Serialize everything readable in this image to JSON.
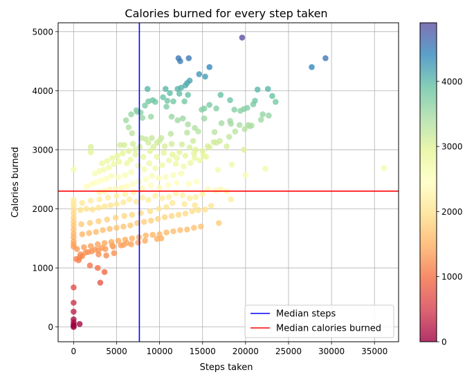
{
  "chart_data": {
    "type": "scatter",
    "title": "Calories burned for every step taken",
    "xlabel": "Steps taken",
    "ylabel": "Calories burned",
    "xlim": [
      -1800,
      37800
    ],
    "ylim": [
      -250,
      5150
    ],
    "xticks": [
      0,
      5000,
      10000,
      15000,
      20000,
      25000,
      30000,
      35000
    ],
    "yticks": [
      0,
      1000,
      2000,
      3000,
      4000,
      5000
    ],
    "grid": true,
    "colormap": "Spectral",
    "colorbar": {
      "min": 0,
      "max": 4900,
      "ticks": [
        0,
        1000,
        2000,
        3000,
        4000
      ]
    },
    "reference_lines": [
      {
        "orientation": "vertical",
        "value": 7650,
        "color": "#0000ff",
        "label": "Median steps"
      },
      {
        "orientation": "horizontal",
        "value": 2300,
        "color": "#ff0000",
        "label": "Median calories burned"
      }
    ],
    "legend": {
      "placement": "lower right",
      "entries": [
        "Median steps",
        "Median calories burned"
      ]
    },
    "points": [
      [
        19600,
        4900
      ],
      [
        29300,
        4550
      ],
      [
        27700,
        4400
      ],
      [
        12200,
        4550
      ],
      [
        12400,
        4500
      ],
      [
        13400,
        4550
      ],
      [
        15800,
        4400
      ],
      [
        14600,
        4280
      ],
      [
        15300,
        4240
      ],
      [
        13200,
        4130
      ],
      [
        13500,
        4170
      ],
      [
        13000,
        4090
      ],
      [
        12100,
        4030
      ],
      [
        12500,
        4050
      ],
      [
        8600,
        4030
      ],
      [
        10700,
        4030
      ],
      [
        11200,
        3960
      ],
      [
        12300,
        3950
      ],
      [
        13300,
        3930
      ],
      [
        17100,
        3930
      ],
      [
        18200,
        3840
      ],
      [
        15800,
        3760
      ],
      [
        21400,
        4020
      ],
      [
        22600,
        4030
      ],
      [
        23100,
        3910
      ],
      [
        23500,
        3810
      ],
      [
        21100,
        3830
      ],
      [
        20900,
        3770
      ],
      [
        22000,
        3600
      ],
      [
        22700,
        3580
      ],
      [
        20200,
        3710
      ],
      [
        19800,
        3690
      ],
      [
        19400,
        3660
      ],
      [
        18700,
        3680
      ],
      [
        15200,
        3700
      ],
      [
        14900,
        3680
      ],
      [
        16600,
        3700
      ],
      [
        17200,
        3450
      ],
      [
        15200,
        3530
      ],
      [
        8300,
        3750
      ],
      [
        8700,
        3820
      ],
      [
        9200,
        3840
      ],
      [
        9500,
        3810
      ],
      [
        10400,
        3890
      ],
      [
        10900,
        3830
      ],
      [
        11600,
        3820
      ],
      [
        12900,
        3820
      ],
      [
        7400,
        3640
      ],
      [
        6700,
        3600
      ],
      [
        7300,
        3670
      ],
      [
        7800,
        3630
      ],
      [
        6100,
        3500
      ],
      [
        6400,
        3380
      ],
      [
        6800,
        3280
      ],
      [
        8000,
        3540
      ],
      [
        9000,
        3560
      ],
      [
        10800,
        3730
      ],
      [
        11400,
        3560
      ],
      [
        12100,
        3500
      ],
      [
        12700,
        3530
      ],
      [
        13300,
        3430
      ],
      [
        14100,
        3370
      ],
      [
        14500,
        3310
      ],
      [
        13200,
        3290
      ],
      [
        11300,
        3270
      ],
      [
        10200,
        3200
      ],
      [
        9100,
        3200
      ],
      [
        8400,
        3180
      ],
      [
        7700,
        3050
      ],
      [
        6900,
        3100
      ],
      [
        5900,
        3080
      ],
      [
        5400,
        3080
      ],
      [
        2000,
        3050
      ],
      [
        2000,
        2960
      ],
      [
        19900,
        3350
      ],
      [
        20300,
        3420
      ],
      [
        20700,
        3410
      ],
      [
        19800,
        3000
      ],
      [
        18300,
        3440
      ],
      [
        18200,
        3490
      ],
      [
        18100,
        3220
      ],
      [
        16600,
        3120
      ],
      [
        16400,
        3300
      ],
      [
        15800,
        3040
      ],
      [
        15000,
        2980
      ],
      [
        14200,
        3000
      ],
      [
        13500,
        3040
      ],
      [
        12300,
        2960
      ],
      [
        11500,
        2920
      ],
      [
        10600,
        3060
      ],
      [
        9700,
        3120
      ],
      [
        8900,
        2980
      ],
      [
        8100,
        2880
      ],
      [
        7200,
        2920
      ],
      [
        6600,
        2830
      ],
      [
        6200,
        2770
      ],
      [
        5300,
        2800
      ],
      [
        4700,
        2760
      ],
      [
        4100,
        2700
      ],
      [
        3500,
        2660
      ],
      [
        3000,
        2640
      ],
      [
        2500,
        2600
      ],
      [
        0,
        2670
      ],
      [
        18400,
        2750
      ],
      [
        16800,
        2660
      ],
      [
        20000,
        2570
      ],
      [
        22300,
        2680
      ],
      [
        36100,
        2690
      ],
      [
        15400,
        2880
      ],
      [
        14700,
        2820
      ],
      [
        14100,
        2860
      ],
      [
        13600,
        2780
      ],
      [
        12800,
        2720
      ],
      [
        11900,
        2760
      ],
      [
        11100,
        2820
      ],
      [
        10300,
        2740
      ],
      [
        9500,
        2690
      ],
      [
        8800,
        2770
      ],
      [
        8200,
        2670
      ],
      [
        7500,
        2730
      ],
      [
        6700,
        2620
      ],
      [
        6000,
        2570
      ],
      [
        5200,
        2540
      ],
      [
        4400,
        2560
      ],
      [
        3800,
        2510
      ],
      [
        3200,
        2480
      ],
      [
        2600,
        2450
      ],
      [
        2100,
        2420
      ],
      [
        1500,
        2380
      ],
      [
        12500,
        2600
      ],
      [
        11600,
        2570
      ],
      [
        10700,
        2540
      ],
      [
        9900,
        2520
      ],
      [
        9100,
        2560
      ],
      [
        8400,
        2500
      ],
      [
        7600,
        2460
      ],
      [
        6900,
        2420
      ],
      [
        6200,
        2380
      ],
      [
        5600,
        2360
      ],
      [
        4900,
        2340
      ],
      [
        4200,
        2330
      ],
      [
        3600,
        2300
      ],
      [
        3000,
        2280
      ],
      [
        13400,
        2420
      ],
      [
        14300,
        2460
      ],
      [
        15600,
        2330
      ],
      [
        16500,
        2310
      ],
      [
        17100,
        2330
      ],
      [
        17800,
        2300
      ],
      [
        18300,
        2160
      ],
      [
        15000,
        2250
      ],
      [
        14200,
        2200
      ],
      [
        13500,
        2180
      ],
      [
        12700,
        2230
      ],
      [
        11900,
        2260
      ],
      [
        11100,
        2200
      ],
      [
        10300,
        2180
      ],
      [
        9500,
        2220
      ],
      [
        8700,
        2150
      ],
      [
        8000,
        2190
      ],
      [
        7300,
        2120
      ],
      [
        6500,
        2160
      ],
      [
        5800,
        2110
      ],
      [
        5000,
        2080
      ],
      [
        4300,
        2060
      ],
      [
        3600,
        2040
      ],
      [
        2900,
        2020
      ],
      [
        2200,
        1990
      ],
      [
        1500,
        2000
      ],
      [
        800,
        1980
      ],
      [
        0,
        2050
      ],
      [
        0,
        1980
      ],
      [
        0,
        1920
      ],
      [
        0,
        1850
      ],
      [
        0,
        1780
      ],
      [
        0,
        1720
      ],
      [
        0,
        1650
      ],
      [
        0,
        1580
      ],
      [
        0,
        1520
      ],
      [
        0,
        1450
      ],
      [
        0,
        1400
      ],
      [
        0,
        1360
      ],
      [
        0,
        2100
      ],
      [
        0,
        2150
      ],
      [
        16000,
        2050
      ],
      [
        15300,
        1990
      ],
      [
        14500,
        1980
      ],
      [
        13800,
        1960
      ],
      [
        13000,
        1920
      ],
      [
        12200,
        1900
      ],
      [
        11400,
        1880
      ],
      [
        10600,
        1860
      ],
      [
        9800,
        1830
      ],
      [
        9000,
        1800
      ],
      [
        8200,
        1780
      ],
      [
        7400,
        1760
      ],
      [
        6600,
        1720
      ],
      [
        5800,
        1700
      ],
      [
        5000,
        1680
      ],
      [
        4200,
        1660
      ],
      [
        3400,
        1640
      ],
      [
        2600,
        1610
      ],
      [
        1800,
        1590
      ],
      [
        1000,
        1570
      ],
      [
        16900,
        1760
      ],
      [
        14800,
        1700
      ],
      [
        14000,
        1680
      ],
      [
        13200,
        1650
      ],
      [
        12400,
        1640
      ],
      [
        11600,
        1620
      ],
      [
        10800,
        1600
      ],
      [
        10000,
        1570
      ],
      [
        9200,
        1560
      ],
      [
        8400,
        1550
      ],
      [
        7600,
        1520
      ],
      [
        6800,
        1500
      ],
      [
        6000,
        1480
      ],
      [
        5200,
        1460
      ],
      [
        4400,
        1440
      ],
      [
        3600,
        1420
      ],
      [
        2800,
        1400
      ],
      [
        2000,
        1370
      ],
      [
        1200,
        1350
      ],
      [
        400,
        1320
      ],
      [
        10200,
        1500
      ],
      [
        9700,
        1490
      ],
      [
        8300,
        1460
      ],
      [
        7500,
        1430
      ],
      [
        6700,
        1400
      ],
      [
        5500,
        1380
      ],
      [
        4600,
        1360
      ],
      [
        3700,
        1320
      ],
      [
        2900,
        1300
      ],
      [
        2100,
        1280
      ],
      [
        1400,
        1260
      ],
      [
        800,
        1230
      ],
      [
        6200,
        1420
      ],
      [
        5800,
        1390
      ],
      [
        4500,
        1380
      ],
      [
        3300,
        1340
      ],
      [
        2500,
        1310
      ],
      [
        1700,
        1270
      ],
      [
        1000,
        1200
      ],
      [
        700,
        1180
      ],
      [
        300,
        1150
      ],
      [
        600,
        1130
      ],
      [
        2900,
        1230
      ],
      [
        4700,
        1250
      ],
      [
        3800,
        1210
      ],
      [
        1900,
        1040
      ],
      [
        2800,
        1000
      ],
      [
        3600,
        930
      ],
      [
        3100,
        750
      ],
      [
        0,
        670
      ],
      [
        0,
        410
      ],
      [
        0,
        260
      ],
      [
        0,
        130
      ],
      [
        0,
        80
      ],
      [
        0,
        40
      ],
      [
        0,
        20
      ],
      [
        700,
        50
      ],
      [
        0,
        0
      ],
      [
        11400,
        3100
      ],
      [
        10000,
        3150
      ],
      [
        9300,
        3050
      ],
      [
        8700,
        3120
      ],
      [
        7900,
        3200
      ],
      [
        7200,
        3010
      ],
      [
        6400,
        2980
      ],
      [
        5700,
        2940
      ],
      [
        5100,
        2900
      ],
      [
        4500,
        2860
      ],
      [
        3900,
        2810
      ],
      [
        3300,
        2770
      ],
      [
        12600,
        3090
      ],
      [
        13900,
        3150
      ],
      [
        15600,
        3060
      ],
      [
        16300,
        3130
      ],
      [
        17000,
        3150
      ],
      [
        17800,
        3060
      ],
      [
        18800,
        3310
      ],
      [
        19300,
        3420
      ],
      [
        20500,
        3400
      ],
      [
        21800,
        3510
      ],
      [
        9700,
        2880
      ],
      [
        10500,
        2950
      ],
      [
        12000,
        2860
      ],
      [
        13000,
        2900
      ],
      [
        14000,
        2940
      ],
      [
        15100,
        2910
      ],
      [
        11000,
        2400
      ],
      [
        12000,
        2440
      ],
      [
        10000,
        2360
      ],
      [
        9000,
        2400
      ],
      [
        8000,
        2350
      ],
      [
        7000,
        2280
      ],
      [
        6000,
        2250
      ],
      [
        5000,
        2220
      ],
      [
        4000,
        2190
      ],
      [
        3000,
        2160
      ],
      [
        2000,
        2140
      ],
      [
        1000,
        2100
      ],
      [
        11500,
        2100
      ],
      [
        12900,
        2080
      ],
      [
        14100,
        2060
      ],
      [
        10800,
        2030
      ],
      [
        9900,
        2000
      ],
      [
        8900,
        1960
      ],
      [
        7800,
        1930
      ],
      [
        6800,
        1900
      ],
      [
        5900,
        1880
      ],
      [
        4900,
        1850
      ],
      [
        3900,
        1820
      ],
      [
        2900,
        1790
      ],
      [
        1900,
        1760
      ],
      [
        900,
        1740
      ]
    ]
  }
}
